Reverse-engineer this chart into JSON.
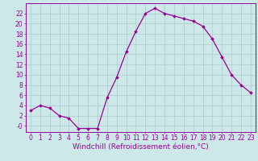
{
  "x": [
    0,
    1,
    2,
    3,
    4,
    5,
    6,
    7,
    8,
    9,
    10,
    11,
    12,
    13,
    14,
    15,
    16,
    17,
    18,
    19,
    20,
    21,
    22,
    23
  ],
  "y": [
    3,
    4,
    3.5,
    2,
    1.5,
    -0.5,
    -0.5,
    -0.5,
    5.5,
    9.5,
    14.5,
    18.5,
    22,
    23,
    22,
    21.5,
    21,
    20.5,
    19.5,
    17,
    13.5,
    10,
    8,
    6.5
  ],
  "line_color": "#990099",
  "marker": "D",
  "marker_size": 1.8,
  "bg_color": "#cce8e8",
  "grid_color": "#aacccc",
  "tick_color": "#990099",
  "label_color": "#990099",
  "xlabel": "Windchill (Refroidissement éolien,°C)",
  "ytick_vals": [
    0,
    2,
    4,
    6,
    8,
    10,
    12,
    14,
    16,
    18,
    20,
    22
  ],
  "ytick_labels": [
    "-0",
    "2",
    "4",
    "6",
    "8",
    "10",
    "12",
    "14",
    "16",
    "18",
    "20",
    "22"
  ],
  "ylim": [
    -1.2,
    24.0
  ],
  "xlim": [
    -0.5,
    23.5
  ],
  "tick_fontsize": 5.5,
  "xlabel_fontsize": 6.5
}
